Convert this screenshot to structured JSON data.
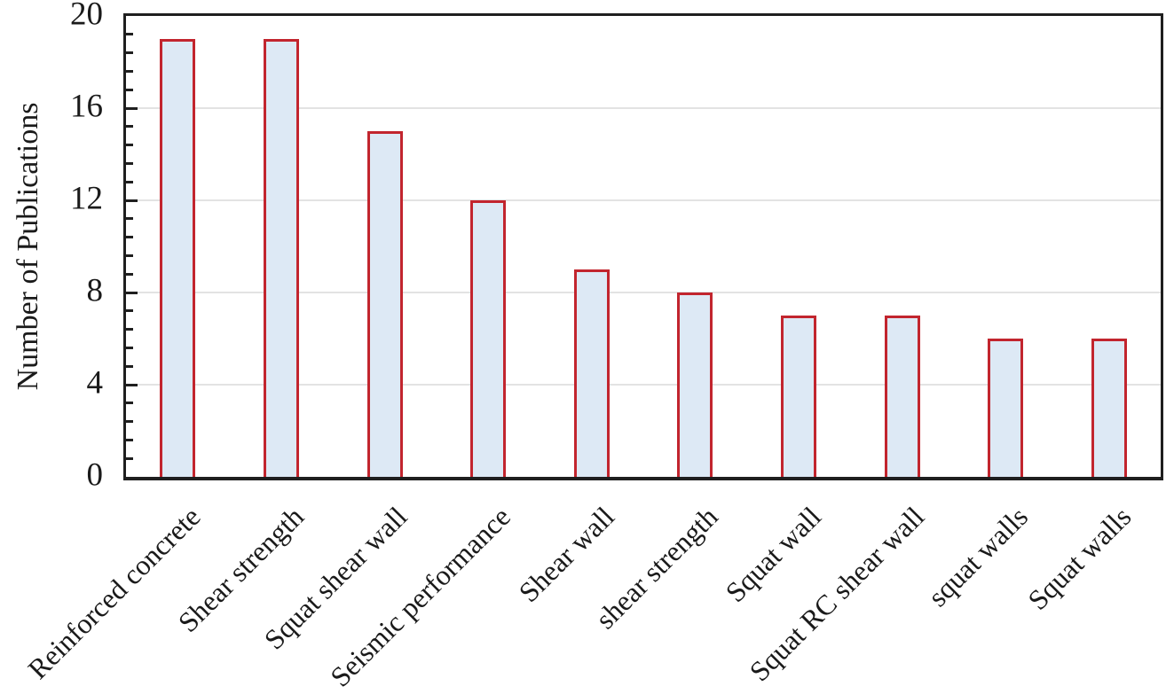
{
  "chart_data": {
    "type": "bar",
    "categories": [
      "Reinforced concrete",
      "Shear strength",
      "Squat shear wall",
      "Seismic performance",
      "Shear wall",
      "shear strength",
      "Squat wall",
      "Squat RC shear wall",
      "squat walls",
      "Squat walls"
    ],
    "values": [
      19,
      19,
      15,
      12,
      9,
      8,
      7,
      7,
      6,
      6
    ],
    "title": "",
    "xlabel": "",
    "ylabel": "Number of Publications",
    "ylim": [
      0,
      20
    ],
    "yticks": [
      0,
      4,
      8,
      12,
      16,
      20
    ],
    "minor_tick_step": 0.8,
    "x_label_rotation_deg": -45,
    "grid": "horizontal-major",
    "legend_position": "none",
    "colors": {
      "bar_fill": "#dde9f5",
      "bar_border": "#c2252e",
      "gridline": "#e3e3e3",
      "axis_frame": "#1f1f1f",
      "tick": "#1f1f1f",
      "text": "#1a1a1a"
    }
  }
}
